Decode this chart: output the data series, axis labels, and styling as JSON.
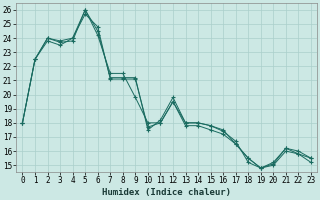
{
  "xlabel": "Humidex (Indice chaleur)",
  "background_color": "#cce8e4",
  "grid_color": "#aacfcb",
  "line_color": "#1a6b60",
  "xlim": [
    -0.5,
    23.5
  ],
  "ylim": [
    14.5,
    26.5
  ],
  "xticks": [
    0,
    1,
    2,
    3,
    4,
    5,
    6,
    7,
    8,
    9,
    10,
    11,
    12,
    13,
    14,
    15,
    16,
    17,
    18,
    19,
    20,
    21,
    22,
    23
  ],
  "yticks": [
    15,
    16,
    17,
    18,
    19,
    20,
    21,
    22,
    23,
    24,
    25,
    26
  ],
  "series": [
    {
      "x": [
        0,
        1,
        2,
        3,
        4,
        5,
        6,
        7,
        8,
        9,
        10,
        11,
        12,
        13,
        14,
        15,
        16,
        17,
        18,
        19,
        20,
        21,
        22,
        23
      ],
      "y": [
        18.0,
        22.5,
        24.0,
        23.8,
        24.0,
        26.0,
        24.5,
        21.2,
        21.2,
        21.2,
        17.5,
        18.2,
        19.8,
        18.0,
        18.0,
        17.8,
        17.4,
        16.7,
        15.2,
        14.8,
        15.1,
        16.2,
        16.0,
        15.5
      ]
    },
    {
      "x": [
        0,
        1,
        2,
        3,
        4,
        5,
        6,
        7,
        8,
        9,
        10,
        11,
        12,
        13,
        14,
        15,
        16,
        17,
        18,
        19,
        20,
        21,
        22,
        23
      ],
      "y": [
        18.0,
        22.5,
        23.8,
        23.5,
        24.0,
        25.7,
        24.8,
        21.1,
        21.1,
        21.1,
        17.7,
        18.0,
        19.5,
        17.8,
        17.8,
        17.5,
        17.2,
        16.5,
        15.5,
        14.8,
        15.0,
        16.0,
        15.8,
        15.2
      ]
    },
    {
      "x": [
        0,
        1,
        2,
        3,
        4,
        5,
        6,
        7,
        8,
        9,
        10,
        11,
        12,
        13,
        14,
        15,
        16,
        17,
        18,
        19,
        20,
        21,
        22,
        23
      ],
      "y": [
        18.0,
        22.5,
        24.0,
        23.7,
        23.8,
        26.0,
        24.2,
        21.5,
        21.5,
        19.8,
        18.0,
        18.0,
        19.5,
        18.0,
        18.0,
        17.8,
        17.5,
        16.5,
        15.5,
        14.8,
        15.2,
        16.2,
        15.8,
        15.5
      ]
    }
  ]
}
